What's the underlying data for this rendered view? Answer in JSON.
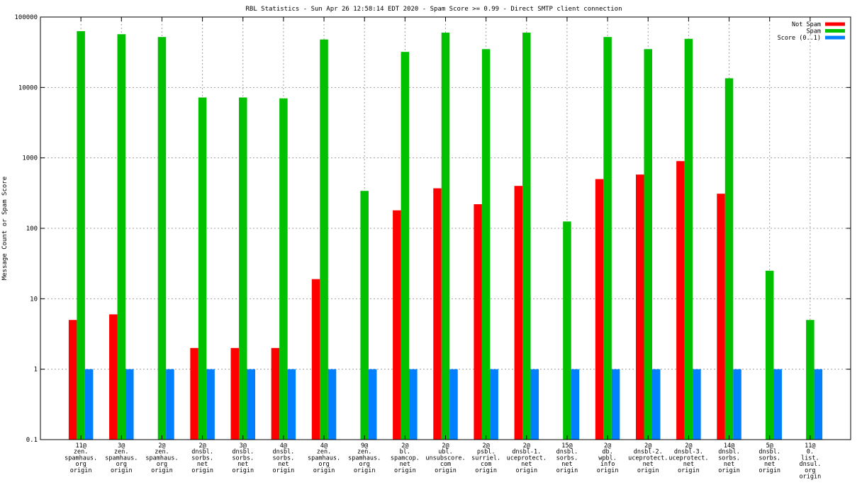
{
  "chart_data": {
    "type": "bar",
    "title": "RBL Statistics - Sun Apr 26 12:58:14 EDT 2020 - Spam Score >= 0.99 - Direct SMTP client connection",
    "xlabel": "",
    "ylabel": "Message Count or Spam Score",
    "yscale": "log",
    "ylim": [
      0.1,
      100000
    ],
    "yticks": [
      "0.1",
      "1",
      "10",
      "100",
      "1000",
      "10000",
      "100000"
    ],
    "grid": true,
    "legend_position": "top-right",
    "categories": [
      [
        "11@",
        "zen.",
        "spamhaus.",
        "org",
        "origin"
      ],
      [
        "3@",
        "zen.",
        "spamhaus.",
        "org",
        "origin"
      ],
      [
        "2@",
        "zen.",
        "spamhaus.",
        "org",
        "origin"
      ],
      [
        "2@",
        "dnsbl.",
        "sorbs.",
        "net",
        "origin"
      ],
      [
        "3@",
        "dnsbl.",
        "sorbs.",
        "net",
        "origin"
      ],
      [
        "4@",
        "dnsbl.",
        "sorbs.",
        "net",
        "origin"
      ],
      [
        "4@",
        "zen.",
        "spamhaus.",
        "org",
        "origin"
      ],
      [
        "9@",
        "zen.",
        "spamhaus.",
        "org",
        "origin"
      ],
      [
        "2@",
        "bl.",
        "spamcop.",
        "net",
        "origin"
      ],
      [
        "2@",
        "ubl.",
        "unsubscore.",
        "com",
        "origin"
      ],
      [
        "2@",
        "psbl.",
        "surriel.",
        "com",
        "origin"
      ],
      [
        "2@",
        "dnsbl-1.",
        "uceprotect.",
        "net",
        "origin"
      ],
      [
        "15@",
        "dnsbl.",
        "sorbs.",
        "net",
        "origin"
      ],
      [
        "2@",
        "db.",
        "wpbl.",
        "info",
        "origin"
      ],
      [
        "2@",
        "dnsbl-2.",
        "uceprotect.",
        "net",
        "origin"
      ],
      [
        "2@",
        "dnsbl-3.",
        "uceprotect.",
        "net",
        "origin"
      ],
      [
        "14@",
        "dnsbl.",
        "sorbs.",
        "net",
        "origin"
      ],
      [
        "5@",
        "dnsbl.",
        "sorbs.",
        "net",
        "origin"
      ],
      [
        "11@",
        "0.",
        "list.",
        "dnsul.",
        "org",
        "origin"
      ]
    ],
    "series": [
      {
        "name": "Not Spam",
        "color": "#ff0000",
        "values": [
          5,
          6,
          null,
          2,
          2,
          2,
          19,
          null,
          180,
          370,
          220,
          400,
          null,
          500,
          580,
          900,
          310,
          null,
          null
        ]
      },
      {
        "name": "Spam",
        "color": "#00c000",
        "values": [
          63000,
          57000,
          52000,
          7200,
          7200,
          7000,
          48000,
          340,
          32000,
          60000,
          35000,
          60000,
          125,
          52000,
          35000,
          49000,
          13500,
          25,
          5
        ]
      },
      {
        "name": "Score (0..1)",
        "color": "#0080ff",
        "values": [
          1,
          1,
          1,
          1,
          1,
          1,
          1,
          1,
          1,
          1,
          1,
          1,
          1,
          1,
          1,
          1,
          1,
          1,
          1
        ]
      }
    ]
  }
}
